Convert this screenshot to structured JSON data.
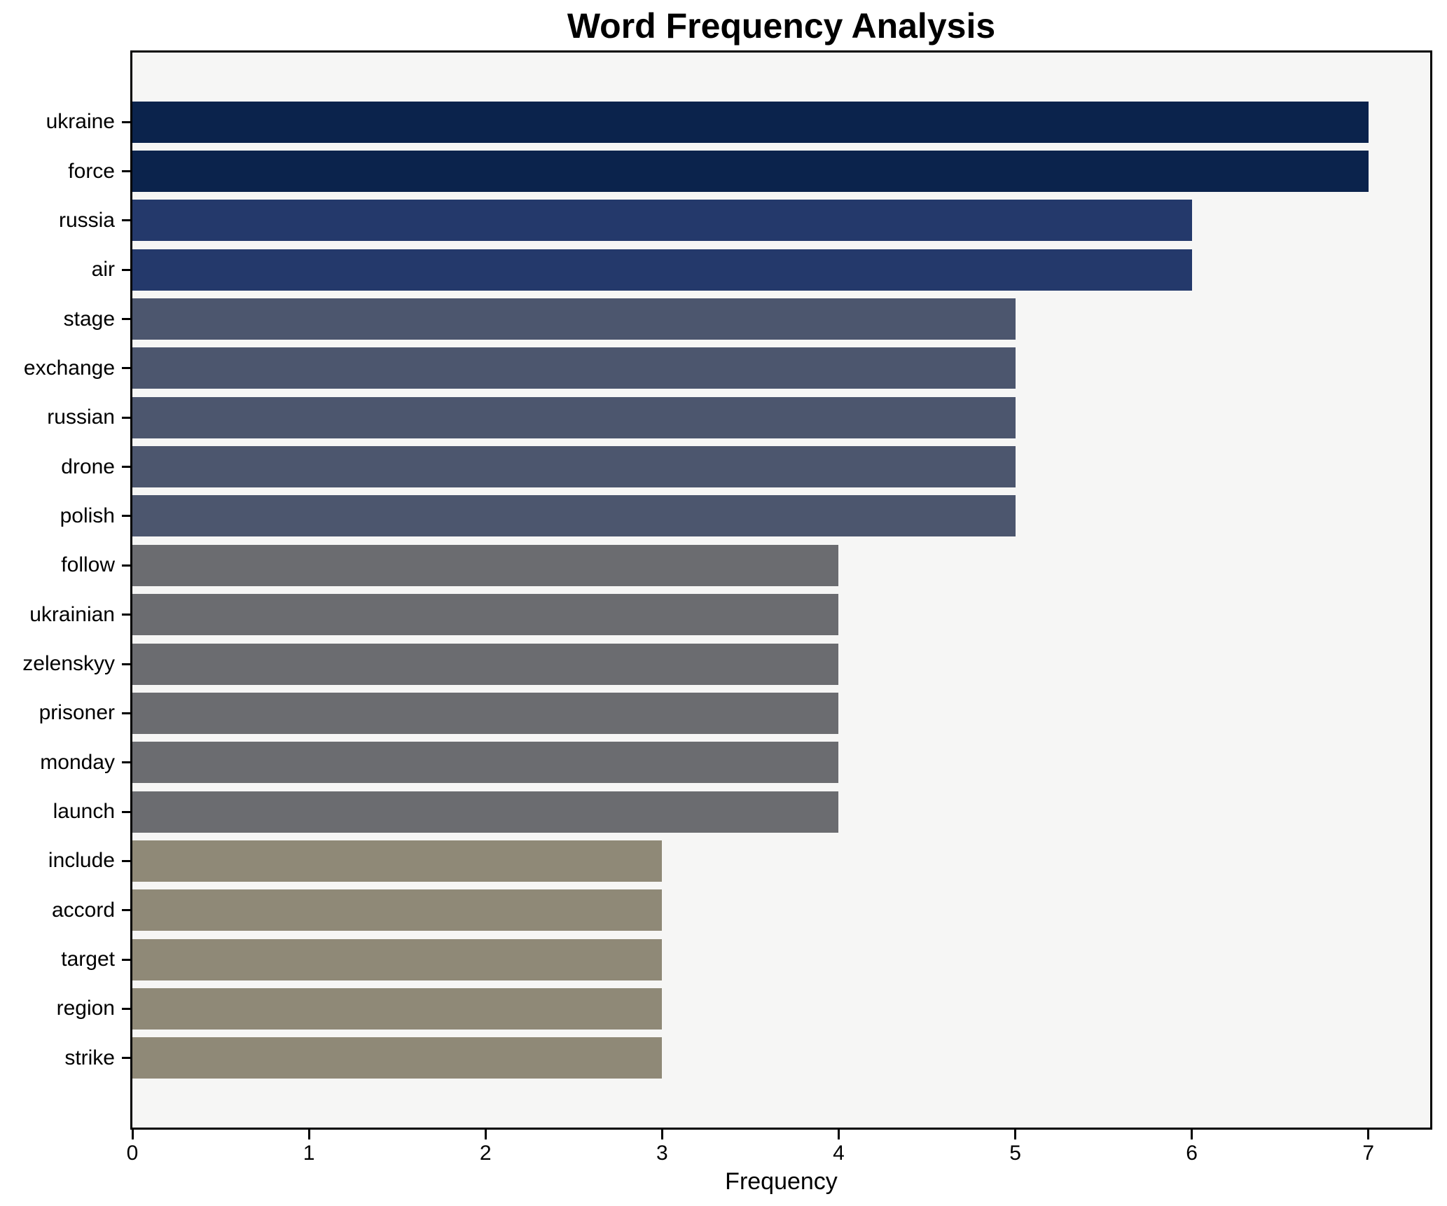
{
  "chart_data": {
    "type": "bar",
    "orientation": "horizontal",
    "title": "Word Frequency Analysis",
    "xlabel": "Frequency",
    "ylabel": "",
    "categories": [
      "ukraine",
      "force",
      "russia",
      "air",
      "stage",
      "exchange",
      "russian",
      "drone",
      "polish",
      "follow",
      "ukrainian",
      "zelenskyy",
      "prisoner",
      "monday",
      "launch",
      "include",
      "accord",
      "target",
      "region",
      "strike"
    ],
    "values": [
      7,
      7,
      6,
      6,
      5,
      5,
      5,
      5,
      5,
      4,
      4,
      4,
      4,
      4,
      4,
      3,
      3,
      3,
      3,
      3
    ],
    "xlim": [
      0,
      7.35
    ],
    "xticks": [
      0,
      1,
      2,
      3,
      4,
      5,
      6,
      7
    ],
    "grid": false,
    "legend": false,
    "colors": {
      "bar_by_value": {
        "7": "#0b234c",
        "6": "#24396b",
        "5": "#4c566e",
        "4": "#6b6c70",
        "3": "#8f8977"
      },
      "plot_background": "#f6f6f5",
      "figure_background": "#ffffff",
      "spine": "#000000",
      "text": "#000000"
    }
  }
}
